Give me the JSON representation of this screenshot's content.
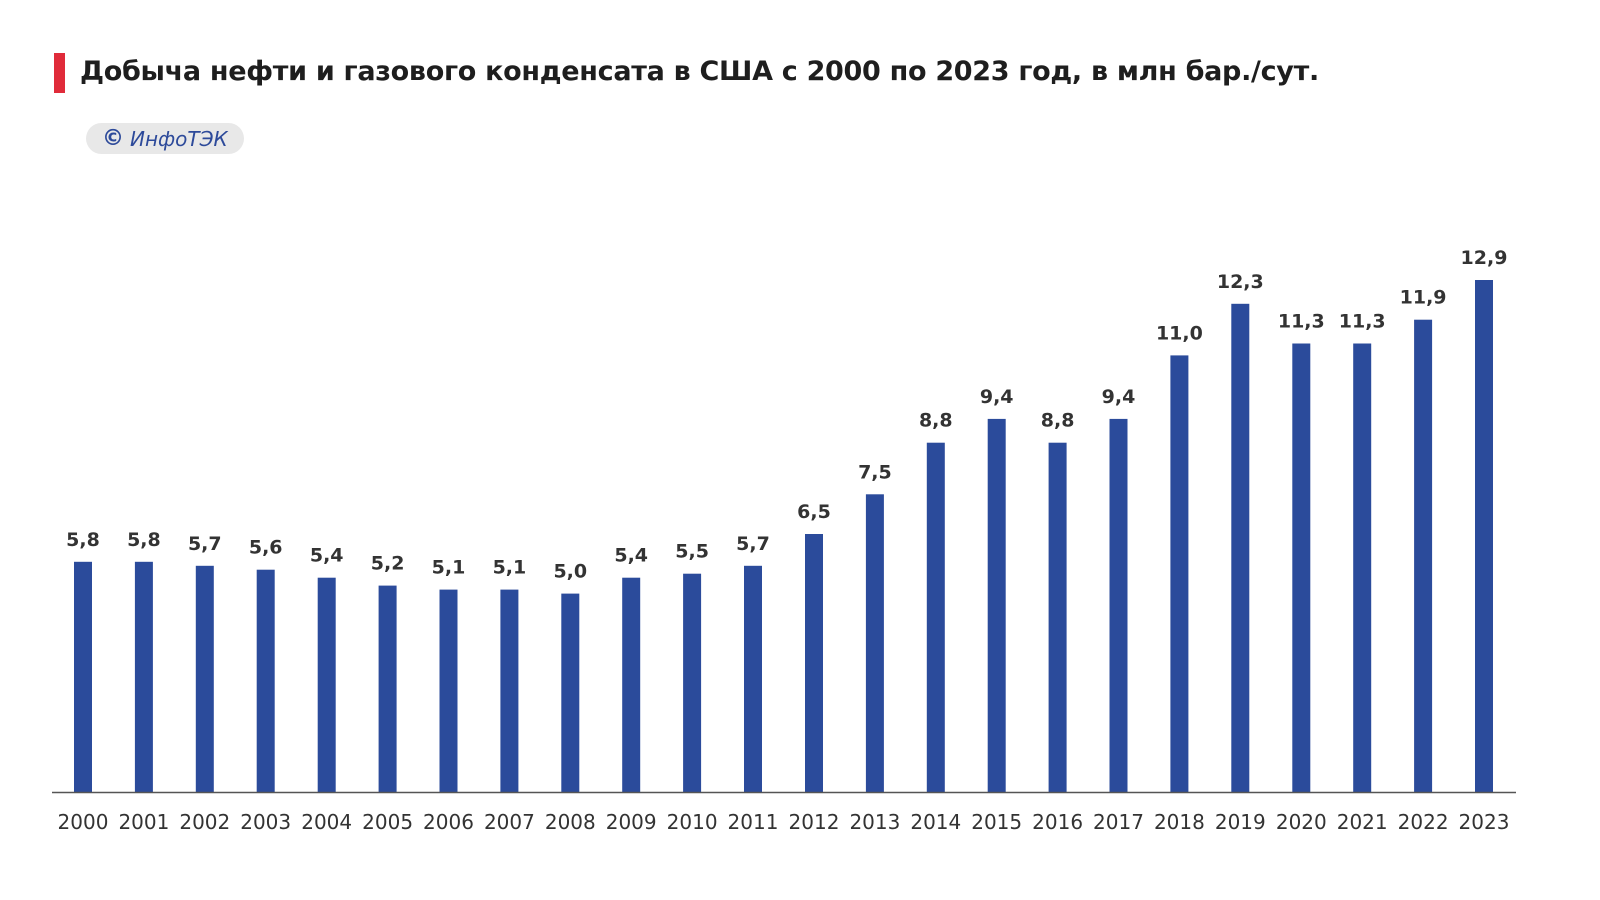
{
  "header": {
    "title": "Добыча нефти и газового конденсата в США с 2000 по 2023 год, в млн бар./сут.",
    "accent_color": "#e02b3a"
  },
  "badge": {
    "icon": "copyright-icon",
    "icon_glyph": "©",
    "text": "ИнфоТЭК",
    "color": "#2d4a9a"
  },
  "chart_data": {
    "type": "bar",
    "categories": [
      "2000",
      "2001",
      "2002",
      "2003",
      "2004",
      "2005",
      "2006",
      "2007",
      "2008",
      "2009",
      "2010",
      "2011",
      "2012",
      "2013",
      "2014",
      "2015",
      "2016",
      "2017",
      "2018",
      "2019",
      "2020",
      "2021",
      "2022",
      "2023"
    ],
    "values": [
      5.8,
      5.8,
      5.7,
      5.6,
      5.4,
      5.2,
      5.1,
      5.1,
      5.0,
      5.4,
      5.5,
      5.7,
      6.5,
      7.5,
      8.8,
      9.4,
      8.8,
      9.4,
      11.0,
      12.3,
      11.3,
      11.3,
      11.9,
      12.9
    ],
    "value_labels": [
      "5,8",
      "5,8",
      "5,7",
      "5,6",
      "5,4",
      "5,2",
      "5,1",
      "5,1",
      "5,0",
      "5,4",
      "5,5",
      "5,7",
      "6,5",
      "7,5",
      "8,8",
      "9,4",
      "8,8",
      "9,4",
      "11,0",
      "12,3",
      "11,3",
      "11,3",
      "11,9",
      "12,9"
    ],
    "title": "Добыча нефти и газового конденсата в США с 2000 по 2023 год, в млн бар./сут.",
    "xlabel": "",
    "ylabel": "",
    "ylim": [
      0,
      12.9
    ],
    "grid": false,
    "bar_color": "#2b4b9b",
    "axis_color": "#555555"
  }
}
